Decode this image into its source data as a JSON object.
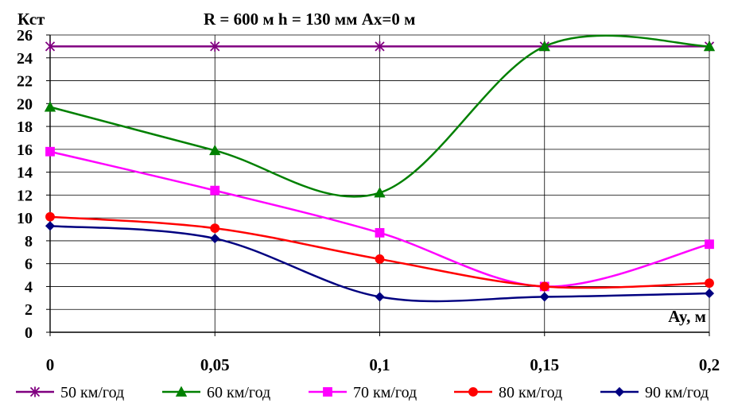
{
  "chart_data": {
    "type": "line",
    "title": "R = 600 м  h = 130 мм Ax=0 м",
    "ylabel": "Кст",
    "xlabel": "Ay, м",
    "categories": [
      "0",
      "0,05",
      "0,1",
      "0,15",
      "0,2"
    ],
    "y_ticks": [
      "0",
      "2",
      "4",
      "6",
      "8",
      "10",
      "12",
      "14",
      "16",
      "18",
      "20",
      "22",
      "24",
      "26"
    ],
    "ylim": [
      0,
      26
    ],
    "grid": "vertical",
    "legend_position": "bottom",
    "series": [
      {
        "name": "50 км/год",
        "color": "#800080",
        "marker": "star",
        "values": [
          25,
          25,
          25,
          25,
          25
        ]
      },
      {
        "name": "60 км/год",
        "color": "#008000",
        "marker": "triangle",
        "values": [
          19.7,
          15.9,
          12.2,
          25,
          25
        ]
      },
      {
        "name": "70 км/год",
        "color": "#ff00ff",
        "marker": "square",
        "values": [
          15.8,
          12.4,
          8.7,
          4,
          7.7
        ]
      },
      {
        "name": "80 км/год",
        "color": "#ff0000",
        "marker": "circle",
        "values": [
          10.1,
          9.1,
          6.4,
          4,
          4.3
        ]
      },
      {
        "name": "90 км/год",
        "color": "#000080",
        "marker": "diamond",
        "values": [
          9.3,
          8.2,
          3.1,
          3.1,
          3.4
        ]
      }
    ]
  }
}
